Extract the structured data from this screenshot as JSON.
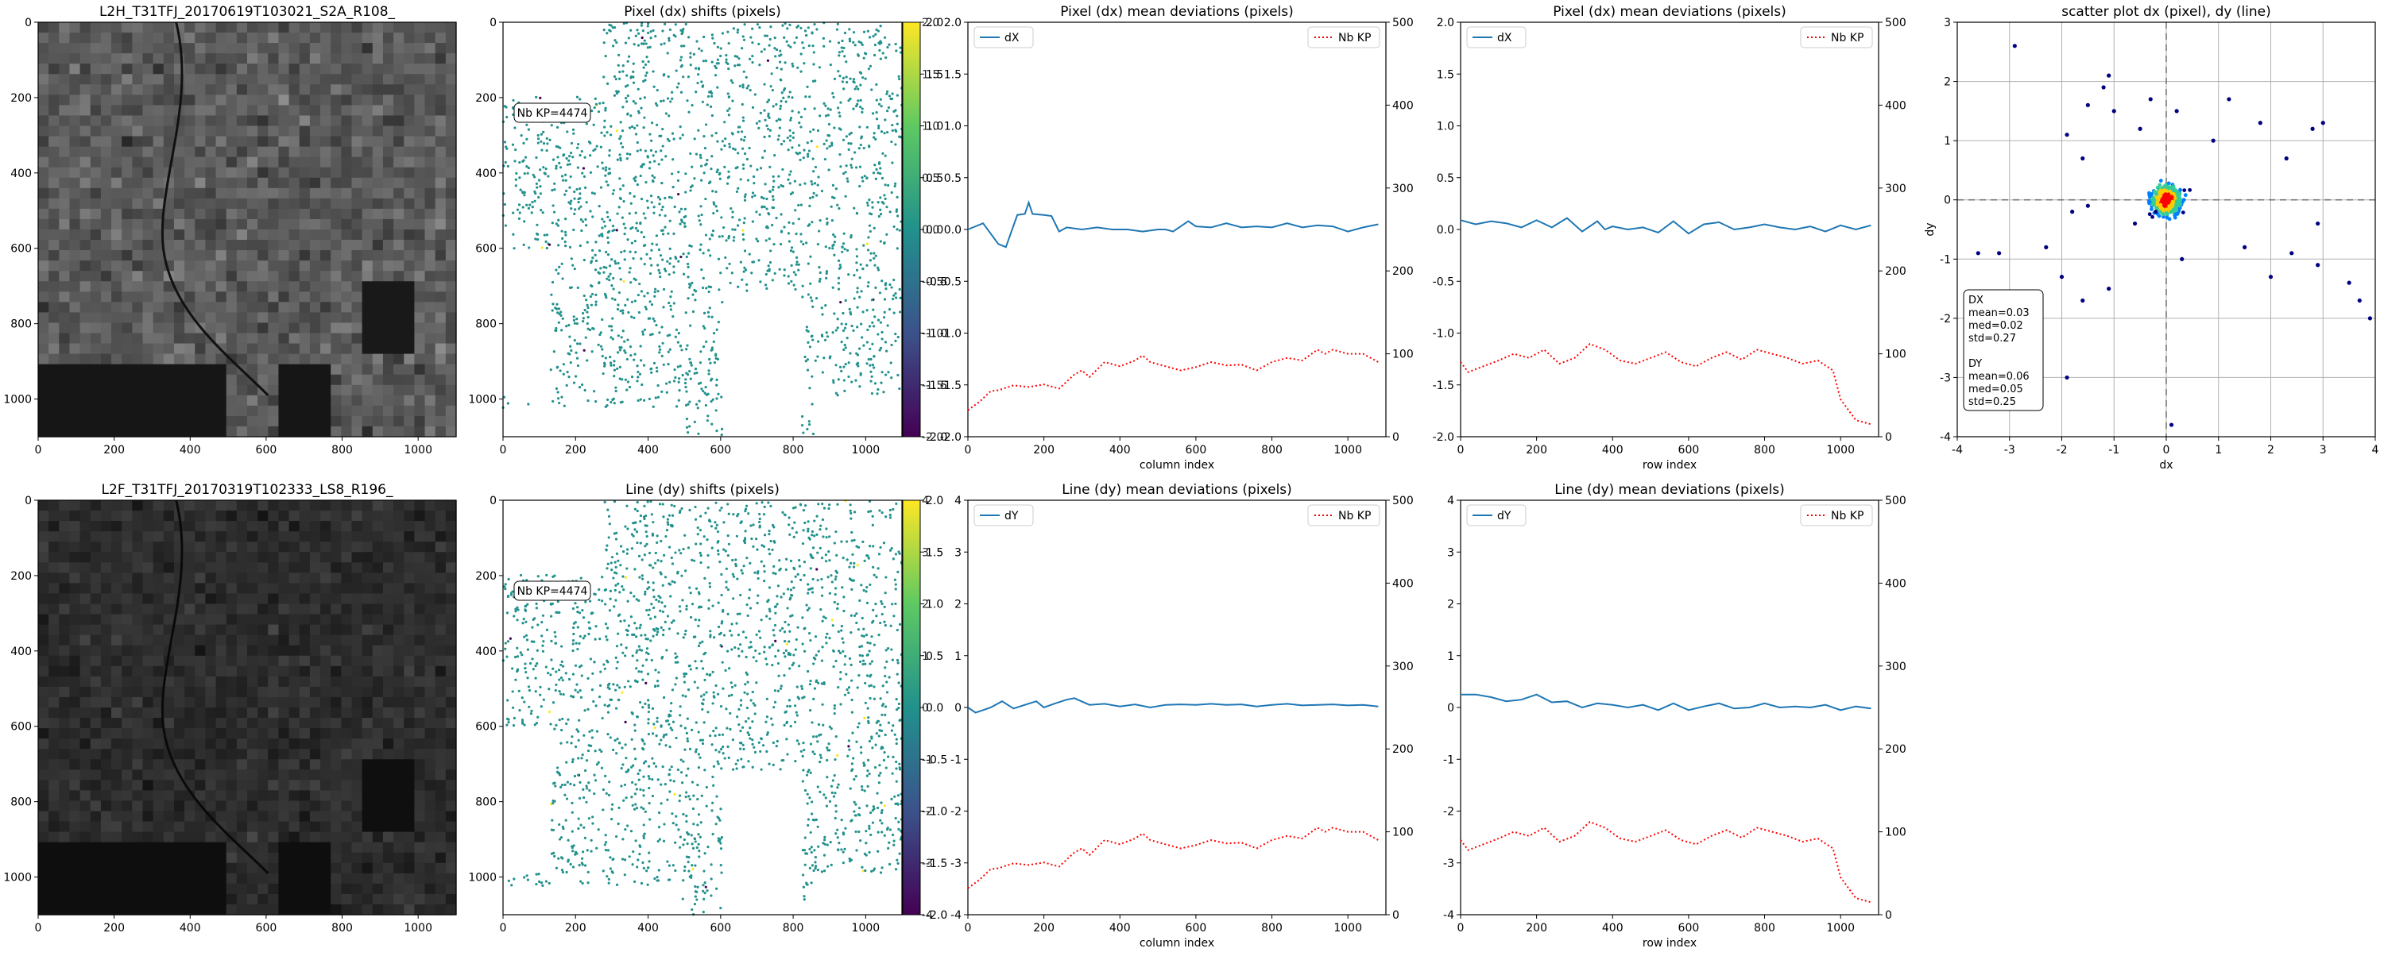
{
  "colors": {
    "blue": "#1f77b4",
    "red": "#ff0000",
    "teal": "#21918c",
    "dark": "#000080"
  },
  "row1": {
    "image_title": "L2H_T31TFJ_20170619T103021_S2A_R108_",
    "shift_title": "Pixel (dx) shifts (pixels)",
    "kp_label": "Nb KP=4474",
    "col_title": "Pixel (dx) mean deviations (pixels)",
    "col_xlabel": "column index",
    "row_title": "Pixel (dx) mean deviations (pixels)",
    "row_xlabel": "row index",
    "legend_main": "dX",
    "legend_kp": "Nb KP"
  },
  "row2": {
    "image_title": "L2F_T31TFJ_20170319T102333_LS8_R196_",
    "shift_title": "Line (dy) shifts (pixels)",
    "kp_label": "Nb KP=4474",
    "col_title": "Line (dy) mean deviations (pixels)",
    "col_xlabel": "column index",
    "row_title": "Line (dy) mean deviations (pixels)",
    "row_xlabel": "row index",
    "legend_main": "dY",
    "legend_kp": "Nb KP"
  },
  "scatter": {
    "title": "scatter plot dx (pixel), dy (line)",
    "xlabel": "dx",
    "ylabel": "dy",
    "stats_lines": [
      "DX",
      "  mean=0.03",
      "  med=0.02",
      "  std=0.27",
      "",
      "DY",
      "  mean=0.06",
      "  med=0.05",
      "  std=0.25"
    ]
  },
  "chart_data": [
    {
      "type": "heatmap",
      "name": "image_L2H",
      "title": "L2H_T31TFJ_20170619T103021_S2A_R108_",
      "xlim": [
        0,
        1100
      ],
      "ylim": [
        1100,
        0
      ],
      "x_ticks": [
        0,
        200,
        400,
        600,
        800,
        1000
      ],
      "y_ticks": [
        0,
        200,
        400,
        600,
        800,
        1000
      ]
    },
    {
      "type": "scatter",
      "name": "dx_shift_map",
      "title": "Pixel (dx) shifts (pixels)",
      "xlim": [
        0,
        1100
      ],
      "ylim": [
        1100,
        0
      ],
      "x_ticks": [
        0,
        200,
        400,
        600,
        800,
        1000
      ],
      "y_ticks": [
        0,
        200,
        400,
        600,
        800,
        1000
      ],
      "colorbar_ticks": [
        "-2.0",
        "-1.5",
        "-1.0",
        "-0.5",
        "0.0",
        "0.5",
        "1.0",
        "1.5",
        "2.0"
      ],
      "colorbar_ticks_overlap": [
        "-2.0",
        "-1.5",
        "-1.0",
        "-0.5",
        "0.0",
        "0.5",
        "1.0",
        "1.5",
        "2.0"
      ],
      "annotation": "Nb KP=4474"
    },
    {
      "type": "line",
      "name": "dx_col_dev",
      "title": "Pixel (dx) mean deviations (pixels)",
      "xlabel": "column index",
      "xlim": [
        0,
        1100
      ],
      "ylim": [
        -2,
        2
      ],
      "y2lim": [
        0,
        500
      ],
      "x_ticks": [
        0,
        200,
        400,
        600,
        800,
        1000
      ],
      "y_ticks": [
        -2.0,
        -1.5,
        -1.0,
        -0.5,
        0.0,
        0.5,
        1.0,
        1.5,
        2.0
      ],
      "y2_ticks": [
        0,
        100,
        200,
        300,
        400,
        500
      ],
      "series": [
        {
          "name": "dX",
          "axis": "left",
          "style": "solid",
          "x": [
            0,
            40,
            80,
            100,
            130,
            150,
            160,
            170,
            200,
            220,
            240,
            260,
            300,
            340,
            380,
            420,
            460,
            500,
            520,
            540,
            560,
            580,
            600,
            640,
            680,
            720,
            760,
            800,
            840,
            880,
            920,
            960,
            1000,
            1040,
            1080
          ],
          "y": [
            0.0,
            0.06,
            -0.14,
            -0.17,
            0.14,
            0.15,
            0.26,
            0.15,
            0.14,
            0.13,
            -0.02,
            0.02,
            0.0,
            0.02,
            0.0,
            0.0,
            -0.02,
            0.0,
            0.0,
            -0.02,
            0.03,
            0.08,
            0.03,
            0.02,
            0.06,
            0.02,
            0.03,
            0.02,
            0.06,
            0.02,
            0.04,
            0.03,
            -0.02,
            0.02,
            0.05
          ]
        },
        {
          "name": "Nb KP",
          "axis": "right",
          "style": "dotted",
          "x": [
            0,
            30,
            60,
            80,
            120,
            160,
            200,
            240,
            280,
            300,
            320,
            360,
            400,
            440,
            460,
            480,
            520,
            560,
            600,
            640,
            680,
            720,
            760,
            800,
            840,
            880,
            920,
            940,
            960,
            1000,
            1040,
            1080
          ],
          "y": [
            32,
            42,
            55,
            56,
            62,
            60,
            63,
            58,
            75,
            80,
            72,
            90,
            85,
            92,
            98,
            90,
            85,
            80,
            84,
            90,
            86,
            87,
            80,
            90,
            95,
            92,
            105,
            100,
            105,
            100,
            100,
            90
          ]
        }
      ]
    },
    {
      "type": "line",
      "name": "dx_row_dev",
      "title": "Pixel (dx) mean deviations (pixels)",
      "xlabel": "row index",
      "xlim": [
        0,
        1100
      ],
      "ylim": [
        -2,
        2
      ],
      "y2lim": [
        0,
        500
      ],
      "x_ticks": [
        0,
        200,
        400,
        600,
        800,
        1000
      ],
      "y_ticks": [
        -2.0,
        -1.5,
        -1.0,
        -0.5,
        0.0,
        0.5,
        1.0,
        1.5,
        2.0
      ],
      "y2_ticks": [
        0,
        100,
        200,
        300,
        400,
        500
      ],
      "series": [
        {
          "name": "dX",
          "axis": "left",
          "style": "solid",
          "x": [
            0,
            40,
            80,
            120,
            160,
            200,
            240,
            280,
            320,
            360,
            380,
            400,
            440,
            480,
            520,
            560,
            600,
            640,
            680,
            720,
            760,
            800,
            840,
            880,
            920,
            960,
            1000,
            1040,
            1080
          ],
          "y": [
            0.09,
            0.05,
            0.08,
            0.06,
            0.02,
            0.09,
            0.02,
            0.11,
            -0.02,
            0.08,
            0.0,
            0.03,
            0.0,
            0.02,
            -0.03,
            0.08,
            -0.04,
            0.05,
            0.07,
            0.0,
            0.02,
            0.05,
            0.02,
            0.0,
            0.03,
            -0.02,
            0.04,
            0.0,
            0.04
          ]
        },
        {
          "name": "Nb KP",
          "axis": "right",
          "style": "dotted",
          "x": [
            0,
            20,
            60,
            100,
            140,
            180,
            220,
            260,
            300,
            340,
            380,
            420,
            460,
            500,
            540,
            580,
            620,
            660,
            700,
            740,
            780,
            820,
            860,
            900,
            940,
            980,
            1000,
            1040,
            1080
          ],
          "y": [
            90,
            78,
            85,
            92,
            100,
            95,
            105,
            88,
            95,
            112,
            105,
            92,
            88,
            95,
            102,
            90,
            85,
            95,
            102,
            93,
            105,
            100,
            95,
            88,
            92,
            80,
            45,
            20,
            15
          ]
        }
      ]
    },
    {
      "type": "scatter",
      "name": "dx_dy_scatter",
      "title": "scatter plot dx (pixel), dy (line)",
      "xlabel": "dx",
      "ylabel": "dy",
      "xlim": [
        -4,
        4
      ],
      "ylim": [
        -4,
        3
      ],
      "x_ticks": [
        -4,
        -3,
        -2,
        -1,
        0,
        1,
        2,
        3,
        4
      ],
      "y_ticks": [
        -4,
        -3,
        -2,
        -1,
        0,
        1,
        2,
        3
      ],
      "grid": true,
      "outliers": {
        "x": [
          -2.9,
          -1.5,
          -1.2,
          -1.1,
          -1.0,
          -1.9,
          -1.6,
          -1.8,
          -3.2,
          -3.6,
          -2.0,
          -1.9,
          -1.1,
          -1.6,
          -2.3,
          0.1,
          0.2,
          -0.3,
          -0.5,
          1.2,
          0.9,
          1.8,
          2.3,
          2.8,
          3.0,
          2.9,
          2.0,
          2.4,
          2.9,
          3.5,
          3.9,
          3.7,
          0.3,
          -0.6,
          -0.2,
          1.5,
          -1.5
        ],
        "y": [
          2.6,
          1.6,
          1.9,
          2.1,
          1.5,
          1.1,
          0.7,
          -0.2,
          -0.9,
          -0.9,
          -1.3,
          -3.0,
          -1.5,
          -1.7,
          -0.8,
          -3.8,
          1.5,
          1.7,
          1.2,
          1.7,
          1.0,
          1.3,
          0.7,
          1.2,
          1.3,
          -0.4,
          -1.3,
          -0.9,
          -1.1,
          -1.4,
          -2.0,
          -1.7,
          -1.0,
          -0.4,
          -0.2,
          -0.8,
          -0.1
        ]
      },
      "stats": {
        "dx": {
          "mean": 0.03,
          "med": 0.02,
          "std": 0.27
        },
        "dy": {
          "mean": 0.06,
          "med": 0.05,
          "std": 0.25
        }
      }
    },
    {
      "type": "heatmap",
      "name": "image_L2F",
      "title": "L2F_T31TFJ_20170319T102333_LS8_R196_",
      "xlim": [
        0,
        1100
      ],
      "ylim": [
        1100,
        0
      ],
      "x_ticks": [
        0,
        200,
        400,
        600,
        800,
        1000
      ],
      "y_ticks": [
        0,
        200,
        400,
        600,
        800,
        1000
      ]
    },
    {
      "type": "scatter",
      "name": "dy_shift_map",
      "title": "Line (dy) shifts (pixels)",
      "xlim": [
        0,
        1100
      ],
      "ylim": [
        1100,
        0
      ],
      "x_ticks": [
        0,
        200,
        400,
        600,
        800,
        1000
      ],
      "y_ticks": [
        0,
        200,
        400,
        600,
        800,
        1000
      ],
      "colorbar_ticks": [
        "-2.0",
        "-1.5",
        "-1.0",
        "-0.5",
        "0.0",
        "0.5",
        "1.0",
        "1.5",
        "2.0"
      ],
      "colorbar_ticks_overlap": [
        "-4",
        "-3",
        "-2",
        "-1",
        "0",
        "1",
        "2",
        "3",
        "4"
      ],
      "annotation": "Nb KP=4474"
    },
    {
      "type": "line",
      "name": "dy_col_dev",
      "title": "Line (dy) mean deviations (pixels)",
      "xlabel": "column index",
      "xlim": [
        0,
        1100
      ],
      "ylim": [
        -4,
        4
      ],
      "y2lim": [
        0,
        500
      ],
      "x_ticks": [
        0,
        200,
        400,
        600,
        800,
        1000
      ],
      "y_ticks": [
        -4,
        -3,
        -2,
        -1,
        0,
        1,
        2,
        3,
        4
      ],
      "y2_ticks": [
        0,
        100,
        200,
        300,
        400,
        500
      ],
      "series": [
        {
          "name": "dY",
          "axis": "left",
          "style": "solid",
          "x": [
            0,
            20,
            40,
            60,
            90,
            120,
            150,
            180,
            200,
            230,
            260,
            280,
            320,
            360,
            400,
            440,
            480,
            520,
            560,
            600,
            640,
            680,
            720,
            760,
            800,
            840,
            880,
            920,
            960,
            1000,
            1040,
            1080
          ],
          "y": [
            0.0,
            -0.1,
            -0.05,
            0.0,
            0.12,
            -0.02,
            0.05,
            0.12,
            0.0,
            0.08,
            0.15,
            0.18,
            0.05,
            0.07,
            0.02,
            0.06,
            0.0,
            0.05,
            0.06,
            0.05,
            0.07,
            0.05,
            0.06,
            0.02,
            0.05,
            0.07,
            0.04,
            0.05,
            0.06,
            0.04,
            0.05,
            0.02
          ]
        },
        {
          "name": "Nb KP",
          "axis": "right",
          "style": "dotted",
          "x": [
            0,
            30,
            60,
            80,
            120,
            160,
            200,
            240,
            280,
            300,
            320,
            360,
            400,
            440,
            460,
            480,
            520,
            560,
            600,
            640,
            680,
            720,
            760,
            800,
            840,
            880,
            920,
            940,
            960,
            1000,
            1040,
            1080
          ],
          "y": [
            32,
            42,
            55,
            56,
            62,
            60,
            63,
            58,
            75,
            80,
            72,
            90,
            85,
            92,
            98,
            90,
            85,
            80,
            84,
            90,
            86,
            87,
            80,
            90,
            95,
            92,
            105,
            100,
            105,
            100,
            100,
            90
          ]
        }
      ]
    },
    {
      "type": "line",
      "name": "dy_row_dev",
      "title": "Line (dy) mean deviations (pixels)",
      "xlabel": "row index",
      "xlim": [
        0,
        1100
      ],
      "ylim": [
        -4,
        4
      ],
      "y2lim": [
        0,
        500
      ],
      "x_ticks": [
        0,
        200,
        400,
        600,
        800,
        1000
      ],
      "y_ticks": [
        -4,
        -3,
        -2,
        -1,
        0,
        1,
        2,
        3,
        4
      ],
      "y2_ticks": [
        0,
        100,
        200,
        300,
        400,
        500
      ],
      "series": [
        {
          "name": "dY",
          "axis": "left",
          "style": "solid",
          "x": [
            0,
            40,
            80,
            120,
            160,
            200,
            240,
            280,
            320,
            360,
            400,
            440,
            480,
            520,
            560,
            600,
            640,
            680,
            720,
            760,
            800,
            840,
            880,
            920,
            960,
            1000,
            1040,
            1080
          ],
          "y": [
            0.25,
            0.25,
            0.2,
            0.12,
            0.15,
            0.25,
            0.1,
            0.12,
            0.0,
            0.08,
            0.05,
            0.0,
            0.05,
            -0.05,
            0.08,
            -0.05,
            0.02,
            0.08,
            -0.02,
            0.0,
            0.08,
            0.0,
            0.02,
            0.0,
            0.05,
            -0.05,
            0.02,
            -0.02
          ]
        },
        {
          "name": "Nb KP",
          "axis": "right",
          "style": "dotted",
          "x": [
            0,
            20,
            60,
            100,
            140,
            180,
            220,
            260,
            300,
            340,
            380,
            420,
            460,
            500,
            540,
            580,
            620,
            660,
            700,
            740,
            780,
            820,
            860,
            900,
            940,
            980,
            1000,
            1040,
            1080
          ],
          "y": [
            90,
            78,
            85,
            92,
            100,
            95,
            105,
            88,
            95,
            112,
            105,
            92,
            88,
            95,
            102,
            90,
            85,
            95,
            102,
            93,
            105,
            100,
            95,
            88,
            92,
            80,
            45,
            20,
            15
          ]
        }
      ]
    }
  ]
}
